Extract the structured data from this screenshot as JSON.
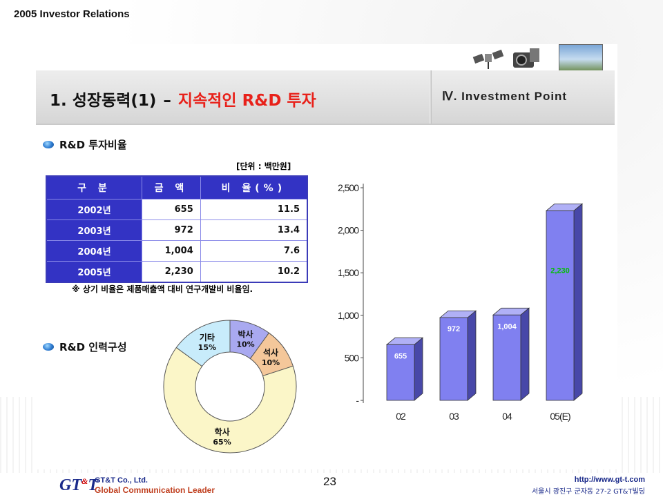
{
  "doc_title": "2005 Investor Relations",
  "header": {
    "title_main": "1. 성장동력(1)",
    "title_dash": "–",
    "title_highlight": "지속적인 R&D 투자",
    "section": "Ⅳ. Investment Point",
    "icons": [
      "satellite-icon",
      "camera-icon",
      "dish-photo-icon"
    ]
  },
  "rd_ratio": {
    "heading": "R&D 투자비율",
    "unit": "[단위 : 백만원]",
    "columns": [
      "구 분",
      "금 액",
      "비 율(%)"
    ],
    "rows": [
      {
        "year": "2002년",
        "amount": "655",
        "ratio": "11.5"
      },
      {
        "year": "2003년",
        "amount": "972",
        "ratio": "13.4"
      },
      {
        "year": "2004년",
        "amount": "1,004",
        "ratio": "7.6"
      },
      {
        "year": "2005년",
        "amount": "2,230",
        "ratio": "10.2"
      }
    ],
    "note": "※ 상기 비율은 제품매출액 대비 연구개발비 비율임."
  },
  "rd_staff": {
    "heading": "R&D 인력구성"
  },
  "chart_data": [
    {
      "type": "pie",
      "style": "donut",
      "slices": [
        {
          "label": "박사",
          "pct_label": "10%",
          "value": 10,
          "color": "#a9a9f0"
        },
        {
          "label": "석사",
          "pct_label": "10%",
          "value": 10,
          "color": "#f4c79a"
        },
        {
          "label": "학사",
          "pct_label": "65%",
          "value": 65,
          "color": "#fbf6c8"
        },
        {
          "label": "기타",
          "pct_label": "15%",
          "value": 15,
          "color": "#c8ecfb"
        }
      ]
    },
    {
      "type": "bar",
      "style": "3d",
      "categories": [
        "02",
        "03",
        "04",
        "05(E)"
      ],
      "values": [
        655,
        972,
        1004,
        2230
      ],
      "data_labels": [
        "655",
        "972",
        "1,004",
        "2,230"
      ],
      "y_ticks": [
        "-",
        "500",
        "1,000",
        "1,500",
        "2,000",
        "2,500"
      ],
      "ylim": [
        0,
        2500
      ],
      "bar_color": "#8080f0",
      "label_color_last": "#00c000"
    }
  ],
  "footer": {
    "logo": "GT&T",
    "company": "GT&T Co., Ltd.",
    "tagline": "Global Communication Leader",
    "page": "23",
    "url": "http://www.gt-t.com",
    "address": "서울시 광진구 군자동 27-2 GT&T빌딩"
  }
}
